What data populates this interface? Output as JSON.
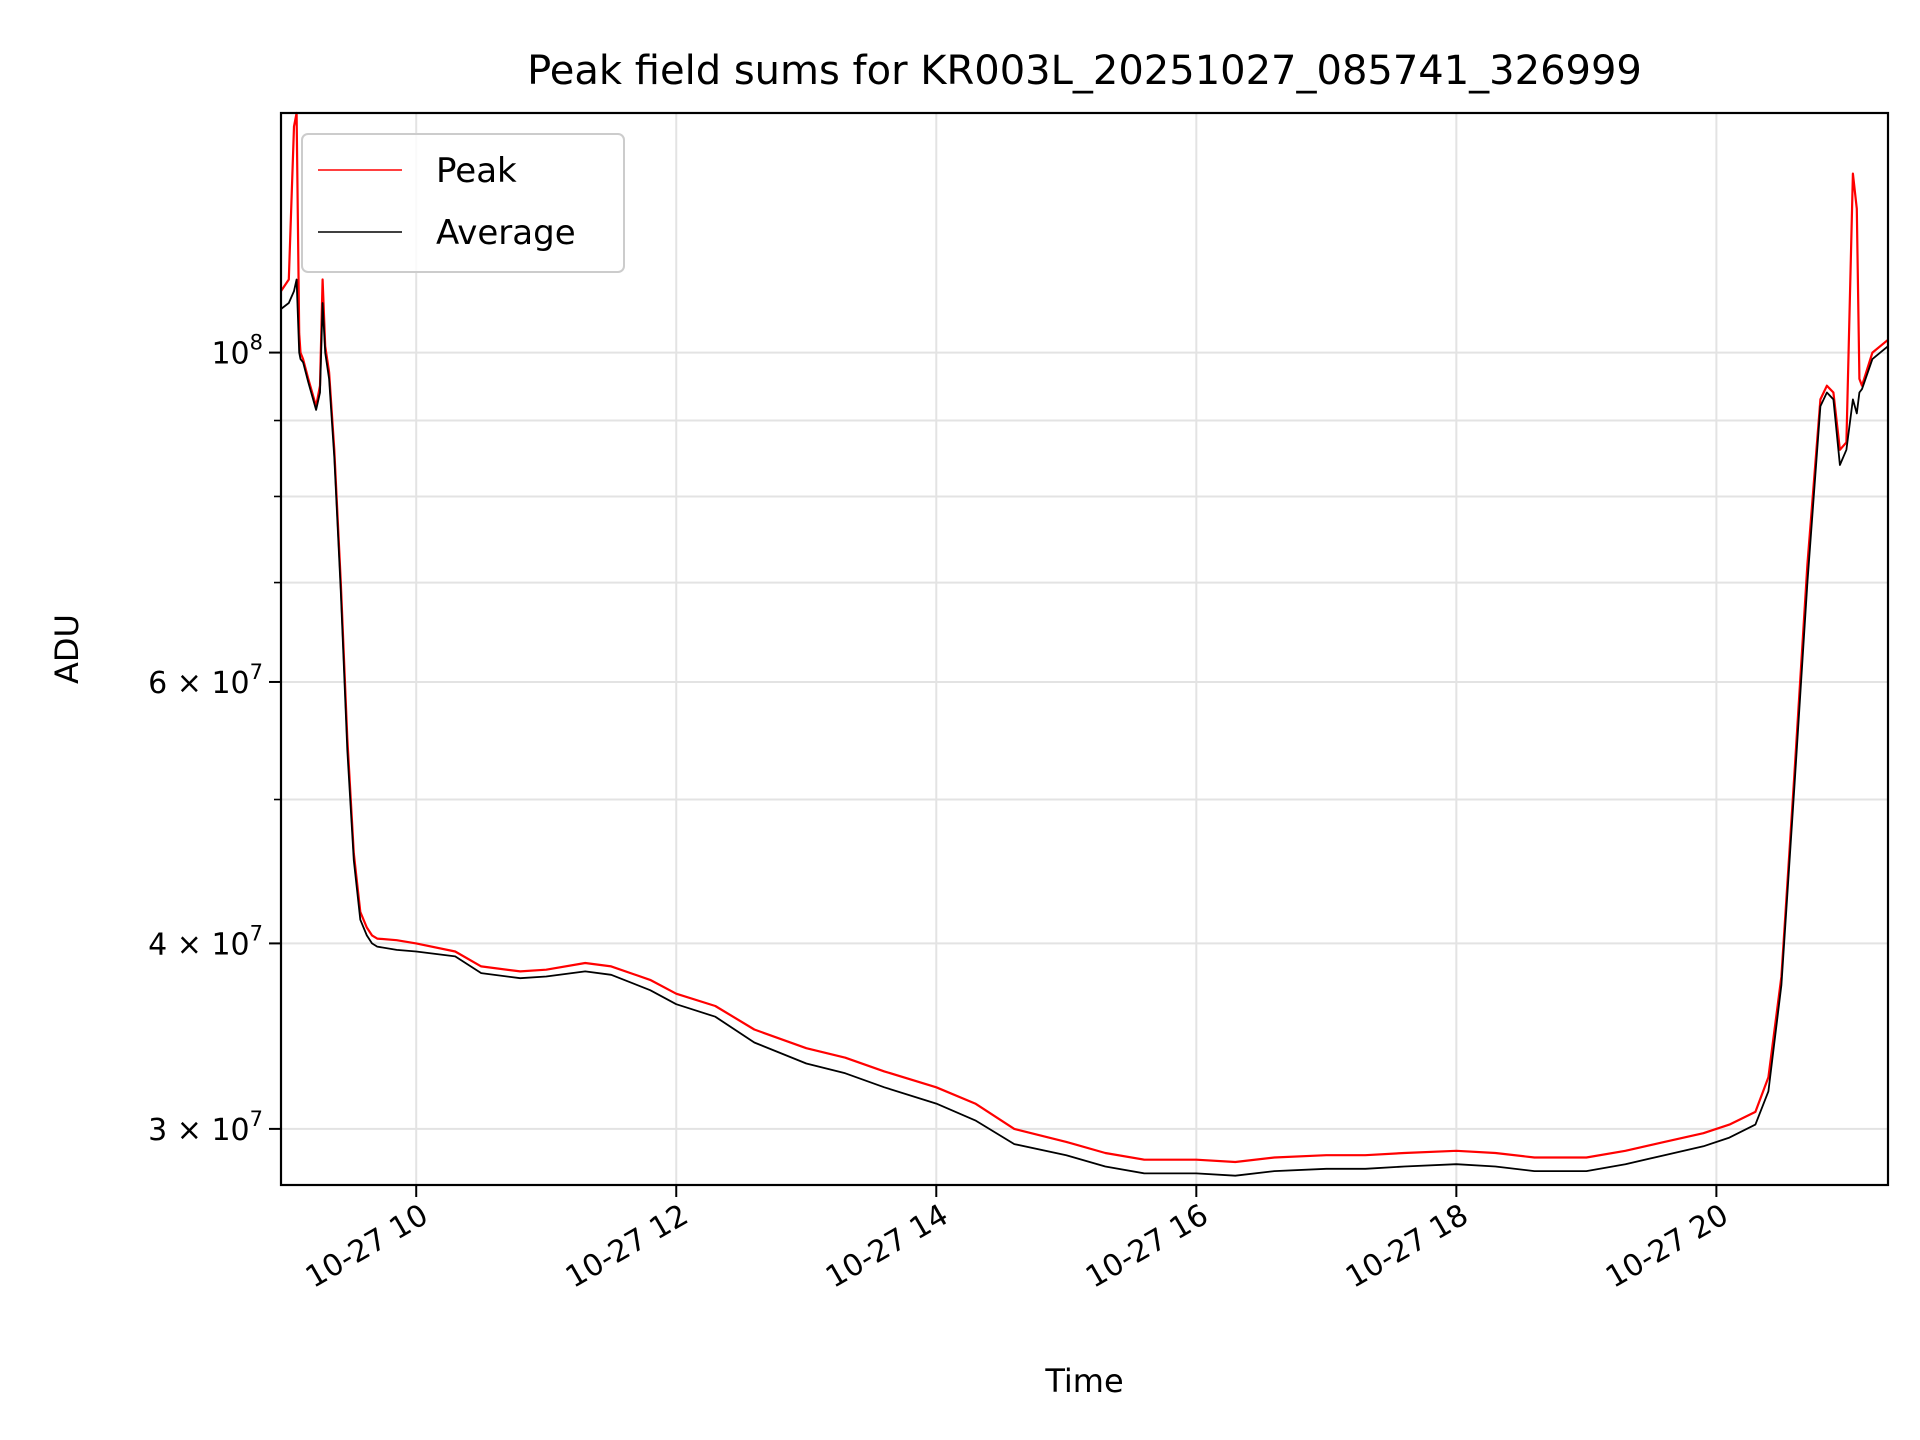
{
  "chart_data": {
    "type": "line",
    "title": "Peak field sums for KR003L_20251027_085741_326999",
    "xlabel": "Time",
    "ylabel": "ADU",
    "yscale": "log",
    "xlim": [
      8.96,
      21.32
    ],
    "ylim": [
      27500000,
      145000000
    ],
    "grid": true,
    "legend_position": "top-left",
    "x_ticks": [
      {
        "value": 10,
        "label": "10-27 10"
      },
      {
        "value": 12,
        "label": "10-27 12"
      },
      {
        "value": 14,
        "label": "10-27 14"
      },
      {
        "value": 16,
        "label": "10-27 16"
      },
      {
        "value": 18,
        "label": "10-27 18"
      },
      {
        "value": 20,
        "label": "10-27 20"
      }
    ],
    "y_ticks_major": [
      {
        "value": 100000000,
        "base": "10",
        "exp": "8",
        "mantissa": ""
      },
      {
        "value": 60000000,
        "base": "10",
        "exp": "7",
        "mantissa": "6"
      },
      {
        "value": 40000000,
        "base": "10",
        "exp": "7",
        "mantissa": "4"
      },
      {
        "value": 30000000,
        "base": "10",
        "exp": "7",
        "mantissa": "3"
      }
    ],
    "y_ticks_minor": [
      50000000,
      70000000,
      80000000,
      90000000
    ],
    "series": [
      {
        "name": "Peak",
        "color": "#ff0000",
        "x": [
          8.96,
          9.02,
          9.06,
          9.08,
          9.1,
          9.11,
          9.13,
          9.17,
          9.23,
          9.26,
          9.28,
          9.3,
          9.33,
          9.37,
          9.42,
          9.47,
          9.52,
          9.57,
          9.62,
          9.66,
          9.7,
          9.85,
          10.0,
          10.3,
          10.5,
          10.8,
          11.0,
          11.3,
          11.5,
          11.8,
          12.0,
          12.3,
          12.6,
          13.0,
          13.3,
          13.6,
          14.0,
          14.3,
          14.6,
          15.0,
          15.3,
          15.6,
          16.0,
          16.3,
          16.6,
          17.0,
          17.3,
          17.6,
          18.0,
          18.3,
          18.6,
          19.0,
          19.3,
          19.6,
          19.9,
          20.1,
          20.3,
          20.4,
          20.5,
          20.6,
          20.7,
          20.8,
          20.85,
          20.9,
          20.95,
          21.0,
          21.05,
          21.08,
          21.1,
          21.12,
          21.2,
          21.32
        ],
        "y": [
          110000000,
          112000000,
          142000000,
          145000000,
          103000000,
          100000000,
          99000000,
          96000000,
          92000000,
          95000000,
          112000000,
          101000000,
          97000000,
          86000000,
          70000000,
          55000000,
          46000000,
          42000000,
          41000000,
          40500000,
          40300000,
          40200000,
          40000000,
          39500000,
          38600000,
          38300000,
          38400000,
          38800000,
          38600000,
          37800000,
          37000000,
          36300000,
          35000000,
          34000000,
          33500000,
          32800000,
          32000000,
          31200000,
          30000000,
          29400000,
          28900000,
          28600000,
          28600000,
          28500000,
          28700000,
          28800000,
          28800000,
          28900000,
          29000000,
          28900000,
          28700000,
          28700000,
          29000000,
          29400000,
          29800000,
          30200000,
          30800000,
          32500000,
          38000000,
          52000000,
          72000000,
          93000000,
          95000000,
          94000000,
          86000000,
          87000000,
          132000000,
          125000000,
          96000000,
          95000000,
          100000000,
          102000000
        ]
      },
      {
        "name": "Average",
        "color": "#000000",
        "x": [
          8.96,
          9.02,
          9.06,
          9.08,
          9.1,
          9.11,
          9.13,
          9.17,
          9.23,
          9.26,
          9.28,
          9.3,
          9.33,
          9.37,
          9.42,
          9.47,
          9.52,
          9.57,
          9.62,
          9.66,
          9.7,
          9.85,
          10.0,
          10.3,
          10.5,
          10.8,
          11.0,
          11.3,
          11.5,
          11.8,
          12.0,
          12.3,
          12.6,
          13.0,
          13.3,
          13.6,
          14.0,
          14.3,
          14.6,
          15.0,
          15.3,
          15.6,
          16.0,
          16.3,
          16.6,
          17.0,
          17.3,
          17.6,
          18.0,
          18.3,
          18.6,
          19.0,
          19.3,
          19.6,
          19.9,
          20.1,
          20.3,
          20.4,
          20.5,
          20.6,
          20.7,
          20.8,
          20.85,
          20.9,
          20.95,
          21.0,
          21.05,
          21.08,
          21.1,
          21.12,
          21.2,
          21.32
        ],
        "y": [
          107000000,
          108000000,
          110000000,
          112000000,
          100000000,
          99000000,
          98500000,
          95500000,
          91500000,
          94000000,
          108000000,
          100000000,
          96000000,
          85000000,
          69000000,
          54000000,
          45500000,
          41500000,
          40500000,
          40000000,
          39800000,
          39600000,
          39500000,
          39200000,
          38200000,
          37900000,
          38000000,
          38300000,
          38100000,
          37200000,
          36400000,
          35700000,
          34300000,
          33200000,
          32700000,
          32000000,
          31200000,
          30400000,
          29300000,
          28800000,
          28300000,
          28000000,
          28000000,
          27900000,
          28100000,
          28200000,
          28200000,
          28300000,
          28400000,
          28300000,
          28100000,
          28100000,
          28400000,
          28800000,
          29200000,
          29600000,
          30200000,
          31800000,
          37500000,
          51000000,
          70000000,
          92000000,
          94000000,
          93000000,
          84000000,
          86000000,
          93000000,
          91000000,
          94000000,
          94500000,
          99000000,
          101000000
        ]
      }
    ]
  }
}
